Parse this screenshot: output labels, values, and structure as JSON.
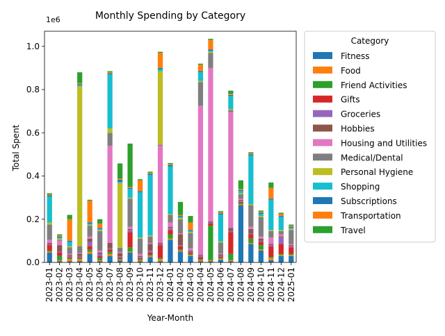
{
  "chart_data": {
    "type": "bar",
    "stacked": true,
    "title": "Monthly Spending by Category",
    "xlabel": "Year-Month",
    "ylabel": "Total Spent",
    "y_offset_label": "1e6",
    "ylim": [
      0,
      1.07
    ],
    "y_ticks": [
      "0.0",
      "0.2",
      "0.4",
      "0.6",
      "0.8",
      "1.0"
    ],
    "legend_title": "Category",
    "legend_position": "right, outside plot",
    "categories": [
      "2023-01",
      "2023-02",
      "2023-03",
      "2023-04",
      "2023-05",
      "2023-06",
      "2023-07",
      "2023-08",
      "2023-09",
      "2023-10",
      "2023-11",
      "2023-12",
      "2024-01",
      "2024-02",
      "2024-03",
      "2024-04",
      "2024-05",
      "2024-06",
      "2024-07",
      "2024-08",
      "2024-09",
      "2024-10",
      "2024-11",
      "2024-12",
      "2025-01"
    ],
    "series": [
      {
        "name": "Fitness",
        "color": "#1f77b4",
        "values": [
          0.045,
          0.005,
          0.005,
          0.005,
          0.04,
          0.005,
          0.03,
          0.008,
          0.045,
          0.005,
          0.025,
          0.005,
          0.105,
          0.05,
          0.03,
          0.005,
          0.005,
          0.012,
          0.005,
          0.265,
          0.085,
          0.055,
          0.01,
          0.03,
          0.03
        ]
      },
      {
        "name": "Food",
        "color": "#ff7f0e",
        "values": [
          0.005,
          0.005,
          0.01,
          0.01,
          0.01,
          0.005,
          0.01,
          0.005,
          0.005,
          0.005,
          0.005,
          0.01,
          0.005,
          0.005,
          0.005,
          0.005,
          0.005,
          0.005,
          0.005,
          0.005,
          0.005,
          0.005,
          0.01,
          0.005,
          0.005
        ]
      },
      {
        "name": "Friend Activities",
        "color": "#2ca02c",
        "values": [
          0.005,
          0.02,
          0.005,
          0.005,
          0.01,
          0.01,
          0.01,
          0.005,
          0.02,
          0.005,
          0.005,
          0.005,
          0.02,
          0.005,
          0.005,
          0.005,
          0.16,
          0.005,
          0.03,
          0.005,
          0.02,
          0.02,
          0.005,
          0.005,
          0.005
        ]
      },
      {
        "name": "Gifts",
        "color": "#d62728",
        "values": [
          0.025,
          0.015,
          0.005,
          0.005,
          0.015,
          0.01,
          0.01,
          0.005,
          0.07,
          0.005,
          0.01,
          0.06,
          0.02,
          0.015,
          0.005,
          0.01,
          0.01,
          0.005,
          0.1,
          0.005,
          0.02,
          0.015,
          0.05,
          0.045,
          0.03
        ]
      },
      {
        "name": "Groceries",
        "color": "#9467bd",
        "values": [
          0.005,
          0.005,
          0.005,
          0.005,
          0.02,
          0.01,
          0.005,
          0.005,
          0.01,
          0.005,
          0.01,
          0.005,
          0.01,
          0.005,
          0.005,
          0.005,
          0.005,
          0.005,
          0.005,
          0.005,
          0.005,
          0.005,
          0.005,
          0.03,
          0.005
        ]
      },
      {
        "name": "Hobbies",
        "color": "#8c564b",
        "values": [
          0.005,
          0.03,
          0.005,
          0.01,
          0.015,
          0.005,
          0.025,
          0.015,
          0.005,
          0.005,
          0.03,
          0.005,
          0.005,
          0.05,
          0.005,
          0.005,
          0.005,
          0.005,
          0.015,
          0.005,
          0.02,
          0.01,
          0.005,
          0.005,
          0.005
        ]
      },
      {
        "name": "Housing and Utilities",
        "color": "#e377c2",
        "values": [
          0.015,
          0.02,
          0.005,
          0.005,
          0.01,
          0.01,
          0.45,
          0.005,
          0.01,
          0.01,
          0.005,
          0.45,
          0.02,
          0.005,
          0.01,
          0.69,
          0.71,
          0.005,
          0.535,
          0.005,
          0.01,
          0.01,
          0.03,
          0.01,
          0.005
        ]
      },
      {
        "name": "Medical/Dental",
        "color": "#7f7f7f",
        "values": [
          0.07,
          0.005,
          0.03,
          0.03,
          0.05,
          0.09,
          0.06,
          0.02,
          0.13,
          0.07,
          0.03,
          0.005,
          0.035,
          0.065,
          0.07,
          0.11,
          0.07,
          0.05,
          0.01,
          0.02,
          0.1,
          0.09,
          0.03,
          0.015,
          0.065
        ]
      },
      {
        "name": "Personal Hygiene",
        "color": "#bcbd22",
        "values": [
          0.01,
          0.005,
          0.005,
          0.74,
          0.005,
          0.005,
          0.02,
          0.3,
          0.005,
          0.005,
          0.005,
          0.34,
          0.005,
          0.005,
          0.005,
          0.005,
          0.005,
          0.005,
          0.005,
          0.005,
          0.005,
          0.005,
          0.005,
          0.005,
          0.005
        ]
      },
      {
        "name": "Shopping",
        "color": "#17becf",
        "values": [
          0.12,
          0.005,
          0.02,
          0.005,
          0.005,
          0.005,
          0.25,
          0.005,
          0.04,
          0.21,
          0.28,
          0.01,
          0.22,
          0.005,
          0.005,
          0.04,
          0.005,
          0.125,
          0.06,
          0.01,
          0.225,
          0.01,
          0.14,
          0.06,
          0.005
        ]
      },
      {
        "name": "Subscriptions",
        "color": "#1f77b4",
        "values": [
          0.005,
          0.005,
          0.005,
          0.005,
          0.005,
          0.005,
          0.005,
          0.01,
          0.005,
          0.005,
          0.005,
          0.005,
          0.005,
          0.005,
          0.005,
          0.005,
          0.005,
          0.005,
          0.005,
          0.005,
          0.005,
          0.005,
          0.005,
          0.005,
          0.005
        ]
      },
      {
        "name": "Transportation",
        "color": "#ff7f0e",
        "values": [
          0.005,
          0.005,
          0.1,
          0.005,
          0.1,
          0.02,
          0.005,
          0.005,
          0.005,
          0.05,
          0.005,
          0.07,
          0.005,
          0.005,
          0.035,
          0.03,
          0.045,
          0.005,
          0.005,
          0.005,
          0.005,
          0.005,
          0.05,
          0.01,
          0.005
        ]
      },
      {
        "name": "Travel",
        "color": "#2ca02c",
        "values": [
          0.005,
          0.005,
          0.02,
          0.05,
          0.005,
          0.02,
          0.005,
          0.07,
          0.2,
          0.005,
          0.005,
          0.005,
          0.005,
          0.06,
          0.03,
          0.005,
          0.005,
          0.005,
          0.015,
          0.04,
          0.005,
          0.005,
          0.025,
          0.005,
          0.005
        ]
      }
    ]
  }
}
